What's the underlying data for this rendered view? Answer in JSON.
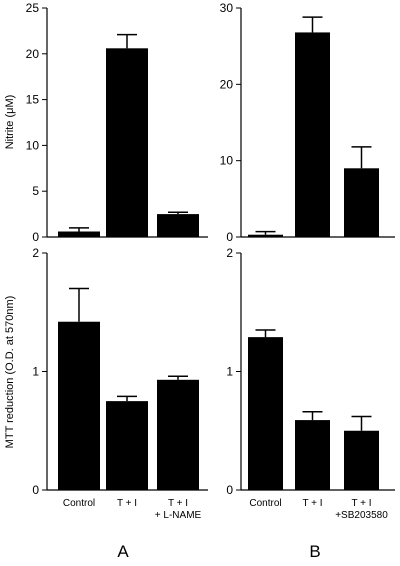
{
  "figure": {
    "ylabel_top": "Nitrite (μM)",
    "ylabel_bottom": "MTT reduction (O.D. at 570nm)",
    "panel_labels": [
      "A",
      "B"
    ]
  },
  "chart_data": [
    {
      "id": "A-top",
      "type": "bar",
      "categories": [
        "Control",
        "T + I",
        "T + I + L-NAME"
      ],
      "values": [
        0.6,
        20.6,
        2.5
      ],
      "error": [
        0.4,
        1.5,
        0.2
      ],
      "ylim": [
        0,
        25
      ],
      "yticks": [
        0,
        5,
        10,
        15,
        20,
        25
      ],
      "ylabel": "Nitrite (μM)"
    },
    {
      "id": "B-top",
      "type": "bar",
      "categories": [
        "Control",
        "T + I",
        "T + I +SB203580"
      ],
      "values": [
        0.3,
        26.8,
        9.0
      ],
      "error": [
        0.4,
        2.0,
        2.8
      ],
      "ylim": [
        0,
        30
      ],
      "yticks": [
        0,
        10,
        20,
        30
      ],
      "ylabel": ""
    },
    {
      "id": "A-bottom",
      "type": "bar",
      "categories": [
        "Control",
        "T + I",
        "T + I + L-NAME"
      ],
      "values": [
        1.42,
        0.75,
        0.93
      ],
      "error": [
        0.28,
        0.04,
        0.03
      ],
      "ylim": [
        0,
        2
      ],
      "yticks": [
        0,
        1,
        2
      ],
      "ylabel": "MTT reduction (O.D. at 570nm)",
      "xlabels": [
        "Control",
        "T + I",
        "T + I\n+ L-NAME"
      ]
    },
    {
      "id": "B-bottom",
      "type": "bar",
      "categories": [
        "Control",
        "T + I",
        "T + I +SB203580"
      ],
      "values": [
        1.29,
        0.59,
        0.5
      ],
      "error": [
        0.06,
        0.07,
        0.12
      ],
      "ylim": [
        0,
        2
      ],
      "yticks": [
        0,
        1,
        2
      ],
      "ylabel": "",
      "xlabels": [
        "Control",
        "T + I",
        "T + I\n+SB203580"
      ]
    }
  ]
}
